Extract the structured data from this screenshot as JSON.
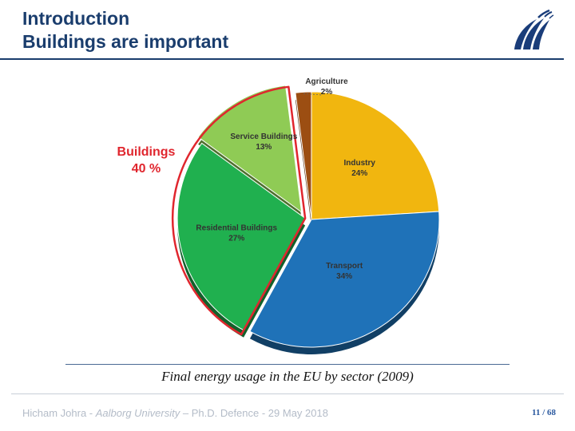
{
  "slide": {
    "title_line1": "Introduction",
    "title_line2": "Buildings are important",
    "caption": "Final energy usage in the EU by sector (2009)",
    "footer": {
      "author": "Hicham Johra - ",
      "university": "Aalborg University",
      "event": " – Ph.D. Defence - 29 May 2018",
      "page": "11 / 68"
    }
  },
  "chart_data": {
    "type": "pie",
    "title": "",
    "slices": [
      {
        "label": "Industry",
        "value": 24,
        "value_label": "24%",
        "color": "#f1b60f"
      },
      {
        "label": "Transport",
        "value": 34,
        "value_label": "34%",
        "color": "#1f72b8"
      },
      {
        "label": "Residential Buildings",
        "value": 27,
        "value_label": "27%",
        "color": "#20b04f"
      },
      {
        "label": "Service Buildings",
        "value": 13,
        "value_label": "13%",
        "color": "#8fcb55"
      },
      {
        "label": "Agriculture",
        "value": 2,
        "value_label": "2%",
        "color": "#9c4e12"
      }
    ],
    "group_annotation": {
      "label": "Buildings",
      "value_label": "40 %",
      "members": [
        "Residential Buildings",
        "Service Buildings"
      ],
      "color": "#e0262e"
    }
  }
}
